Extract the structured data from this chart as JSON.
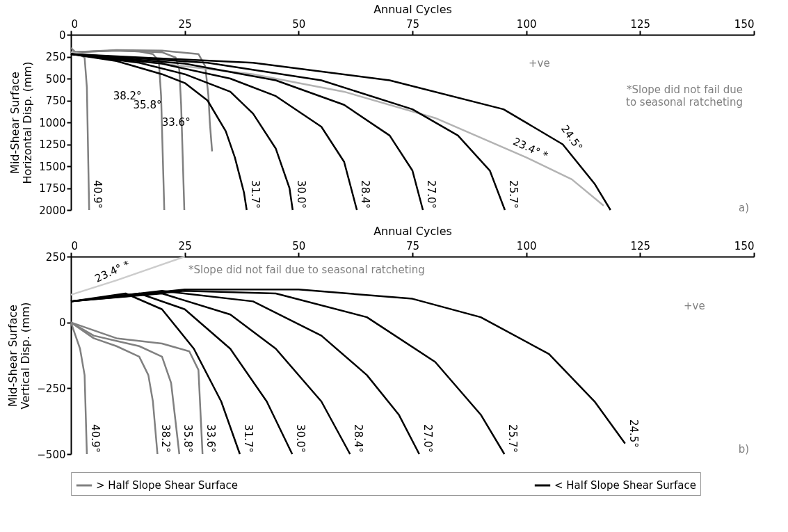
{
  "chart_data": [
    {
      "type": "line",
      "xlabel": "Annual Cycles",
      "ylabel": "Mid-Shear Surface\nHorizontal Disp. (mm)",
      "xlim": [
        0,
        150
      ],
      "xticks": [
        0,
        25,
        50,
        75,
        100,
        125,
        150
      ],
      "ylim": [
        2000,
        0
      ],
      "yticks": [
        0,
        250,
        500,
        750,
        1000,
        1250,
        1500,
        1750,
        2000
      ],
      "grid": false,
      "legend": "bottom",
      "line_style": "solid",
      "marker": "none",
      "series": [
        {
          "name": "> Half Slope Shear Surface",
          "color": "#808080",
          "x": [
            0,
            1,
            2,
            3,
            3.5,
            4
          ],
          "values": [
            150,
            200,
            230,
            260,
            600,
            2000
          ]
        },
        {
          "color": "#808080",
          "x": [
            0,
            5,
            10,
            15,
            18,
            19.3,
            19.8,
            20.5
          ],
          "values": [
            200,
            190,
            180,
            190,
            220,
            300,
            700,
            2000
          ]
        },
        {
          "color": "#808080",
          "x": [
            0,
            10,
            20,
            23,
            23.8,
            24.2,
            24.9
          ],
          "values": [
            200,
            180,
            200,
            260,
            400,
            800,
            2000
          ]
        },
        {
          "color": "#808080",
          "x": [
            0,
            10,
            20,
            28,
            29.5,
            30.2,
            30.5,
            31
          ],
          "values": [
            200,
            175,
            180,
            220,
            360,
            700,
            1000,
            1330
          ]
        },
        {
          "color": "#b3b3b3",
          "x": [
            0,
            20,
            40,
            60,
            80,
            100,
            110,
            117
          ],
          "values": [
            200,
            330,
            450,
            650,
            950,
            1400,
            1650,
            1950
          ]
        },
        {
          "name": "< Half Slope Shear Surface",
          "color": "#000000",
          "x": [
            0,
            10,
            20,
            25,
            30,
            34,
            36,
            38,
            38.6
          ],
          "values": [
            220,
            300,
            450,
            550,
            750,
            1100,
            1400,
            1800,
            2000
          ]
        },
        {
          "color": "#000000",
          "x": [
            0,
            15,
            25,
            35,
            40,
            45,
            48,
            48.7
          ],
          "values": [
            220,
            320,
            450,
            650,
            900,
            1300,
            1750,
            2000
          ]
        },
        {
          "color": "#000000",
          "x": [
            0,
            20,
            35,
            45,
            55,
            60,
            62.8
          ],
          "values": [
            220,
            330,
            500,
            700,
            1050,
            1450,
            2000
          ]
        },
        {
          "color": "#000000",
          "x": [
            0,
            25,
            45,
            60,
            70,
            75,
            77.3
          ],
          "values": [
            220,
            330,
            520,
            800,
            1150,
            1550,
            2000
          ]
        },
        {
          "color": "#000000",
          "x": [
            0,
            30,
            55,
            75,
            85,
            92,
            95.3
          ],
          "values": [
            220,
            320,
            520,
            850,
            1150,
            1550,
            2000
          ]
        },
        {
          "color": "#000000",
          "x": [
            0,
            40,
            70,
            95,
            108,
            115,
            118.5
          ],
          "values": [
            220,
            320,
            520,
            850,
            1250,
            1700,
            2000
          ]
        }
      ],
      "annotations": [
        {
          "text": "40.9°",
          "x": 4,
          "y": 2000
        },
        {
          "text": "38.2°",
          "x": 19.8,
          "y": 700
        },
        {
          "text": "35.8°",
          "x": 24.2,
          "y": 800
        },
        {
          "text": "33.6°",
          "x": 30.5,
          "y": 1000
        },
        {
          "text": "31.7°",
          "x": 38.6,
          "y": 2000
        },
        {
          "text": "30.0°",
          "x": 48.7,
          "y": 2000
        },
        {
          "text": "28.4°",
          "x": 62.8,
          "y": 2000
        },
        {
          "text": "27.0°",
          "x": 77.3,
          "y": 2000
        },
        {
          "text": "25.7°",
          "x": 95.3,
          "y": 2000
        },
        {
          "text": "24.5°",
          "x": 108,
          "y": 1250
        },
        {
          "text": "23.4° *",
          "x": 100,
          "y": 1400
        },
        "*Slope did not fail due to seasonal ratcheting",
        "+ve",
        "a)"
      ]
    },
    {
      "type": "line",
      "xlabel": "Annual Cycles",
      "ylabel": "Mid-Shear Surface\nVertical Disp. (mm)",
      "xlim": [
        0,
        150
      ],
      "xticks": [
        0,
        25,
        50,
        75,
        100,
        125,
        150
      ],
      "ylim": [
        -500,
        250
      ],
      "yticks": [
        -500,
        -250,
        0,
        250
      ],
      "grid": false,
      "legend": "bottom",
      "line_style": "solid",
      "marker": "none",
      "series": [
        {
          "name": "> Half Slope Shear Surface",
          "color": "#808080",
          "x": [
            0,
            1,
            2,
            3,
            3.5
          ],
          "values": [
            0,
            -50,
            -100,
            -200,
            -500
          ]
        },
        {
          "color": "#808080",
          "x": [
            0,
            5,
            10,
            15,
            17,
            18,
            19
          ],
          "values": [
            0,
            -60,
            -90,
            -130,
            -200,
            -300,
            -500
          ]
        },
        {
          "color": "#808080",
          "x": [
            0,
            5,
            10,
            15,
            20,
            22,
            23.8
          ],
          "values": [
            0,
            -50,
            -70,
            -90,
            -130,
            -230,
            -500
          ]
        },
        {
          "color": "#808080",
          "x": [
            0,
            10,
            20,
            26,
            28,
            28.9
          ],
          "values": [
            0,
            -60,
            -80,
            -110,
            -180,
            -500
          ]
        },
        {
          "color": "#cccccc",
          "x": [
            0,
            10,
            20,
            25
          ],
          "values": [
            105,
            160,
            220,
            250
          ]
        },
        {
          "name": "< Half Slope Shear Surface",
          "color": "#000000",
          "x": [
            0,
            12,
            20,
            27,
            33,
            37.1
          ],
          "values": [
            80,
            110,
            50,
            -100,
            -300,
            -500
          ]
        },
        {
          "color": "#000000",
          "x": [
            0,
            15,
            25,
            35,
            43,
            48.6
          ],
          "values": [
            80,
            110,
            50,
            -100,
            -300,
            -500
          ]
        },
        {
          "color": "#000000",
          "x": [
            0,
            20,
            35,
            45,
            55,
            61.3
          ],
          "values": [
            80,
            110,
            30,
            -100,
            -300,
            -500
          ]
        },
        {
          "color": "#000000",
          "x": [
            0,
            20,
            40,
            55,
            65,
            72,
            76.5
          ],
          "values": [
            80,
            120,
            80,
            -50,
            -200,
            -350,
            -500
          ]
        },
        {
          "color": "#000000",
          "x": [
            0,
            25,
            45,
            65,
            80,
            90,
            95.2
          ],
          "values": [
            80,
            120,
            110,
            20,
            -150,
            -350,
            -500
          ]
        },
        {
          "color": "#000000",
          "x": [
            0,
            25,
            50,
            75,
            90,
            105,
            115,
            121.7
          ],
          "values": [
            80,
            125,
            125,
            90,
            20,
            -120,
            -300,
            -460
          ]
        }
      ],
      "annotations": [
        {
          "text": "40.9°",
          "x": 3.5,
          "y": -500
        },
        {
          "text": "38.2°",
          "x": 19,
          "y": -500
        },
        {
          "text": "35.8°",
          "x": 23.8,
          "y": -500
        },
        {
          "text": "33.6°",
          "x": 28.9,
          "y": -500
        },
        {
          "text": "31.7°",
          "x": 37.1,
          "y": -500
        },
        {
          "text": "30.0°",
          "x": 48.6,
          "y": -500
        },
        {
          "text": "28.4°",
          "x": 61.3,
          "y": -500
        },
        {
          "text": "27.0°",
          "x": 76.5,
          "y": -500
        },
        {
          "text": "25.7°",
          "x": 95.2,
          "y": -500
        },
        {
          "text": "24.5°",
          "x": 121.7,
          "y": -460
        },
        {
          "text": "23.4° *",
          "x": 10,
          "y": 160
        },
        "*Slope did not fail due to seasonal ratcheting",
        "+ve",
        "b)"
      ]
    }
  ]
}
